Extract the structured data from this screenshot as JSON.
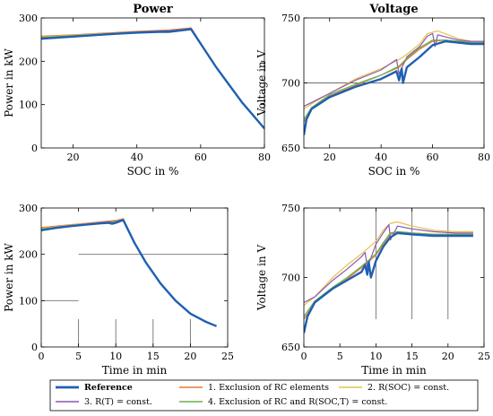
{
  "chart_data": [
    {
      "type": "line",
      "title": "Power",
      "xlabel": "SOC in %",
      "ylabel": "Power in kW",
      "xlim": [
        10,
        80
      ],
      "ylim": [
        0,
        300
      ],
      "xticks": [
        "20",
        "40",
        "60",
        "80"
      ],
      "yticks": [
        "0",
        "100",
        "200",
        "300"
      ],
      "reference_lines": [],
      "series": [
        {
          "name": "Reference",
          "x": [
            10,
            20,
            30,
            40,
            47,
            50,
            57,
            65,
            73,
            80
          ],
          "y": [
            252,
            257,
            262,
            266,
            268,
            268,
            274,
            185,
            105,
            45
          ]
        },
        {
          "name": "1. Exclusion of RC elements",
          "x": [
            10,
            20,
            30,
            40,
            50,
            57,
            65,
            73,
            80
          ],
          "y": [
            258,
            261,
            265,
            269,
            272,
            277,
            185,
            105,
            45
          ]
        },
        {
          "name": "2. R(SOC) = const.",
          "x": [
            10,
            20,
            30,
            40,
            50,
            57,
            65,
            73,
            80
          ],
          "y": [
            256,
            260,
            264,
            267,
            270,
            275,
            185,
            105,
            45
          ]
        },
        {
          "name": "3. R(T) = const.",
          "x": [
            10,
            20,
            30,
            40,
            47,
            50,
            57,
            65,
            73,
            80
          ],
          "y": [
            254,
            258,
            263,
            267,
            269,
            270,
            275,
            185,
            105,
            45
          ]
        },
        {
          "name": "4. Exclusion of RC and R(SOC,T) = const.",
          "x": [
            10,
            20,
            30,
            40,
            50,
            57,
            65,
            73,
            80
          ],
          "y": [
            255,
            259,
            263,
            266,
            269,
            274,
            185,
            105,
            45
          ]
        }
      ]
    },
    {
      "type": "line",
      "title": "Voltage",
      "xlabel": "SOC in %",
      "ylabel": "Voltage in V",
      "xlim": [
        10,
        80
      ],
      "ylim": [
        650,
        750
      ],
      "xticks": [
        "20",
        "40",
        "60",
        "80"
      ],
      "yticks": [
        "650",
        "700",
        "750"
      ],
      "reference_lines": [
        {
          "axis": "y",
          "value": 700,
          "from": 10,
          "to": 80
        }
      ],
      "series": [
        {
          "name": "Reference",
          "x": [
            10,
            11,
            13,
            20,
            30,
            40,
            46,
            47,
            48,
            48.5,
            50,
            55,
            60,
            65,
            70,
            75,
            80
          ],
          "y": [
            660,
            672,
            680,
            689,
            697,
            703,
            709,
            702,
            711,
            700,
            712,
            720,
            729,
            732,
            731,
            730,
            730
          ]
        },
        {
          "name": "1. Exclusion of RC elements",
          "x": [
            10,
            13,
            20,
            30,
            40,
            47,
            50,
            55,
            60,
            65,
            70,
            75,
            80
          ],
          "y": [
            670,
            680,
            690,
            698,
            706,
            712,
            718,
            726,
            732,
            733,
            732,
            731,
            731
          ]
        },
        {
          "name": "2. R(SOC) = const.",
          "x": [
            10,
            13,
            20,
            30,
            40,
            47,
            50,
            55,
            58,
            62,
            66,
            70,
            75,
            80
          ],
          "y": [
            680,
            684,
            692,
            703,
            711,
            718,
            722,
            730,
            738,
            740,
            737,
            734,
            732,
            732
          ]
        },
        {
          "name": "3. R(T) = const.",
          "x": [
            10,
            13,
            20,
            30,
            40,
            46,
            47,
            50,
            55,
            58,
            60,
            61,
            62,
            66,
            70,
            75,
            80
          ],
          "y": [
            682,
            685,
            692,
            702,
            710,
            718,
            707,
            720,
            728,
            736,
            738,
            728,
            737,
            735,
            733,
            732,
            732
          ]
        },
        {
          "name": "4. Exclusion of RC and R(SOC,T) = const.",
          "x": [
            10,
            13,
            20,
            30,
            40,
            47,
            50,
            55,
            60,
            65,
            70,
            75,
            80
          ],
          "y": [
            672,
            681,
            691,
            699,
            706,
            713,
            719,
            727,
            733,
            733,
            732,
            731,
            731
          ]
        }
      ]
    },
    {
      "type": "line",
      "title": "",
      "xlabel": "Time in min",
      "ylabel": "Power in kW",
      "xlim": [
        0,
        25
      ],
      "ylim": [
        0,
        300
      ],
      "xticks": [
        "0",
        "5",
        "10",
        "15",
        "20",
        "25"
      ],
      "yticks": [
        "0",
        "100",
        "200",
        "300"
      ],
      "reference_lines": [
        {
          "axis": "y",
          "value": 200,
          "from": 5,
          "to": 25
        },
        {
          "axis": "y",
          "value": 100,
          "from": 0,
          "to": 5
        },
        {
          "axis": "x",
          "value": 5,
          "from": 0,
          "to": 60
        },
        {
          "axis": "x",
          "value": 10,
          "from": 0,
          "to": 60
        },
        {
          "axis": "x",
          "value": 15,
          "from": 0,
          "to": 60
        },
        {
          "axis": "x",
          "value": 20,
          "from": 0,
          "to": 60
        }
      ],
      "series": [
        {
          "name": "Reference",
          "x": [
            0,
            2,
            4,
            6,
            8,
            9,
            9.5,
            10,
            11,
            12.5,
            14,
            16,
            18,
            20,
            22,
            23.5
          ],
          "y": [
            252,
            257,
            261,
            264,
            267,
            268,
            266,
            268,
            274,
            225,
            183,
            137,
            100,
            72,
            55,
            45
          ]
        },
        {
          "name": "1. Exclusion of RC elements",
          "x": [
            0,
            2,
            4,
            6,
            8,
            10,
            11,
            12.5,
            14,
            16,
            18,
            20,
            22,
            23.5
          ],
          "y": [
            258,
            261,
            264,
            267,
            270,
            273,
            277,
            225,
            183,
            137,
            100,
            72,
            55,
            45
          ]
        },
        {
          "name": "2. R(SOC) = const.",
          "x": [
            0,
            2,
            4,
            6,
            8,
            10,
            11,
            12.5,
            14,
            16,
            18,
            20,
            22,
            23.5
          ],
          "y": [
            256,
            259,
            263,
            266,
            268,
            271,
            275,
            225,
            183,
            137,
            100,
            72,
            55,
            45
          ]
        },
        {
          "name": "3. R(T) = const.",
          "x": [
            0,
            2,
            4,
            6,
            8,
            10,
            11,
            12.5,
            14,
            16,
            18,
            20,
            22,
            23.5
          ],
          "y": [
            254,
            258,
            262,
            265,
            268,
            271,
            275,
            225,
            183,
            137,
            100,
            72,
            55,
            45
          ]
        },
        {
          "name": "4. Exclusion of RC and R(SOC,T) = const.",
          "x": [
            0,
            2,
            4,
            6,
            8,
            10,
            11,
            12.5,
            14,
            16,
            18,
            20,
            22,
            23.5
          ],
          "y": [
            255,
            258,
            262,
            265,
            267,
            270,
            274,
            225,
            183,
            137,
            100,
            72,
            55,
            45
          ]
        }
      ]
    },
    {
      "type": "line",
      "title": "",
      "xlabel": "Time in min",
      "ylabel": "Voltage in V",
      "xlim": [
        0,
        25
      ],
      "ylim": [
        650,
        750
      ],
      "xticks": [
        "0",
        "5",
        "10",
        "15",
        "20",
        "25"
      ],
      "yticks": [
        "650",
        "700",
        "750"
      ],
      "reference_lines": [
        {
          "axis": "x",
          "value": 10,
          "from": 670,
          "to": 750
        },
        {
          "axis": "x",
          "value": 15,
          "from": 670,
          "to": 750
        },
        {
          "axis": "x",
          "value": 20,
          "from": 670,
          "to": 750
        }
      ],
      "series": [
        {
          "name": "Reference",
          "x": [
            0,
            0.5,
            1.5,
            4,
            6,
            8,
            8.5,
            8.8,
            9,
            9.3,
            10,
            11,
            12,
            13,
            15,
            18,
            21,
            23.5
          ],
          "y": [
            660,
            672,
            682,
            692,
            698,
            704,
            709,
            702,
            711,
            700,
            712,
            722,
            729,
            732,
            731,
            730,
            730,
            730
          ]
        },
        {
          "name": "1. Exclusion of RC elements",
          "x": [
            0,
            1.5,
            4,
            6,
            8,
            10,
            11,
            12,
            13,
            15,
            18,
            21,
            23.5
          ],
          "y": [
            670,
            682,
            692,
            699,
            707,
            716,
            724,
            731,
            733,
            732,
            731,
            731,
            731
          ]
        },
        {
          "name": "2. R(SOC) = const.",
          "x": [
            0,
            1.5,
            4,
            6,
            8,
            10,
            11,
            12,
            13,
            15,
            18,
            21,
            23.5
          ],
          "y": [
            680,
            686,
            700,
            709,
            717,
            726,
            734,
            739,
            740,
            737,
            734,
            733,
            733
          ]
        },
        {
          "name": "3. R(T) = const.",
          "x": [
            0,
            1.5,
            4,
            6,
            8,
            8.5,
            8.8,
            10,
            11,
            11.8,
            12,
            13,
            15,
            18,
            21,
            23.5
          ],
          "y": [
            682,
            686,
            698,
            706,
            715,
            718,
            707,
            724,
            732,
            738,
            727,
            737,
            735,
            733,
            732,
            732
          ]
        },
        {
          "name": "4. Exclusion of RC and R(SOC,T) = const.",
          "x": [
            0,
            1.5,
            4,
            6,
            8,
            10,
            11,
            12,
            13,
            15,
            18,
            21,
            23.5
          ],
          "y": [
            672,
            683,
            693,
            700,
            708,
            717,
            725,
            732,
            733,
            732,
            731,
            731,
            731
          ]
        }
      ]
    }
  ],
  "legend": {
    "entries": [
      {
        "label": "Reference",
        "color": "#1f5fb4",
        "width": 2.4
      },
      {
        "label": "1. Exclusion of RC elements",
        "color": "#e07b39",
        "width": 1.2
      },
      {
        "label": "2. R(SOC) = const.",
        "color": "#e3c24f",
        "width": 1.2
      },
      {
        "label": "3. R(T) = const.",
        "color": "#8c56b0",
        "width": 1.2
      },
      {
        "label": "4. Exclusion of RC and R(SOC,T) = const.",
        "color": "#6ab04c",
        "width": 1.2
      }
    ]
  },
  "colors": {
    "axis": "#000000",
    "reference_line": "#707070"
  }
}
